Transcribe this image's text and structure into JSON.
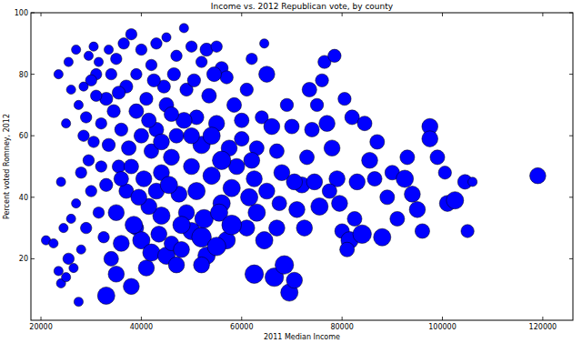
{
  "chart_data": {
    "type": "scatter",
    "title": "Income vs. 2012 Republican vote, by county",
    "x_label": "2011 Median Income",
    "y_label": "Percent voted Romney, 2012",
    "color": "#0000ff",
    "grid": false,
    "xlim": [
      18000,
      126000
    ],
    "ylim": [
      0,
      100
    ],
    "xticks": [
      20000,
      40000,
      60000,
      80000,
      100000,
      120000
    ],
    "yticks": [
      20,
      40,
      60,
      80,
      100
    ],
    "x": [
      21000,
      22500,
      23500,
      24000,
      25000,
      25500,
      26500,
      27500,
      28000,
      24500,
      26000,
      27000,
      25000,
      23500,
      25500,
      27000,
      26000,
      24000,
      28000,
      29000,
      29500,
      28500,
      27500,
      29500,
      30500,
      31000,
      30000,
      31500,
      32500,
      33000,
      35000,
      34000,
      36000,
      38000,
      39000,
      40000,
      41000,
      42000,
      43500,
      45000,
      46000,
      47000,
      48000,
      50000,
      52000,
      53000,
      52500,
      49000,
      44000,
      41500,
      37000,
      35500,
      33500,
      32000,
      33000,
      34000,
      35000,
      36500,
      38000,
      40000,
      42000,
      43000,
      45000,
      47000,
      48500,
      50000,
      52000,
      53000,
      55000,
      56000,
      57000,
      37000,
      39000,
      41000,
      43000,
      45000,
      47000,
      49000,
      51000,
      53500,
      55000,
      57500,
      59000,
      60000,
      58000,
      56000,
      54000,
      50000,
      46000,
      44000,
      42000,
      40000,
      38000,
      36000,
      34500,
      32000,
      30500,
      29000,
      31000,
      30000,
      28500,
      36000,
      39500,
      47500,
      51000,
      55500,
      61000,
      62500,
      63000,
      64000,
      65000,
      66000,
      67000,
      68000,
      66500,
      62500,
      64500,
      67000,
      69500,
      70500,
      68500,
      71000,
      72000,
      73000,
      74000,
      75000,
      76000,
      76500,
      77000,
      78000,
      79000,
      79500,
      80000,
      81500,
      81000,
      82500,
      83000,
      84000,
      86500,
      85500,
      87000,
      88000,
      82000,
      84500,
      80500,
      78500,
      73500,
      70000,
      69000,
      72500,
      75500,
      77500,
      74500,
      90000,
      92500,
      93000,
      94000,
      95000,
      96000,
      97500,
      97500,
      99000,
      101000,
      102500,
      104500,
      105000,
      106000,
      119000,
      100500,
      91000,
      89000,
      63000,
      61500,
      57000,
      55000,
      48000,
      43000,
      38500,
      35000,
      33000,
      37500,
      41500,
      44500,
      46500,
      50500,
      54500,
      58500,
      61000,
      62000,
      64500,
      60000,
      52000,
      48500,
      40500,
      45500,
      39000,
      35500,
      33500,
      31500,
      42500,
      46000,
      44000,
      50000,
      56000,
      54000,
      62000,
      65000,
      67500,
      70500,
      58000,
      52000
    ],
    "values": [
      26,
      25,
      16,
      12,
      14,
      20,
      17,
      6,
      23,
      30,
      33,
      38,
      64,
      80,
      84,
      88,
      75,
      45,
      48,
      30,
      52,
      60,
      70,
      86,
      89,
      80,
      42,
      35,
      27,
      8,
      15,
      20,
      25,
      11,
      30,
      26,
      17,
      22,
      28,
      21,
      25,
      18,
      23,
      29,
      27,
      21,
      33,
      35,
      34,
      37,
      42,
      50,
      57,
      64,
      72,
      80,
      85,
      90,
      93,
      88,
      83,
      90,
      92,
      86,
      95,
      89,
      84,
      88,
      89,
      82,
      79,
      76,
      68,
      72,
      62,
      70,
      60,
      75,
      66,
      73,
      64,
      56,
      50,
      59,
      43,
      38,
      47,
      50,
      53,
      48,
      55,
      60,
      50,
      62,
      68,
      50,
      58,
      66,
      73,
      78,
      76,
      46,
      40,
      41,
      42,
      35,
      30,
      46,
      56,
      66,
      80,
      63,
      55,
      48,
      14,
      15,
      26,
      30,
      9,
      13,
      18,
      36,
      44,
      53,
      62,
      70,
      78,
      84,
      64,
      56,
      46,
      38,
      29,
      26,
      23,
      33,
      45,
      28,
      46,
      52,
      58,
      27,
      66,
      64,
      72,
      86,
      75,
      63,
      70,
      30,
      37,
      42,
      45,
      48,
      46,
      53,
      41,
      36,
      29,
      63,
      59,
      53,
      38,
      39,
      45,
      29,
      45,
      47,
      48,
      33,
      40,
      35,
      40,
      26,
      24,
      31,
      42,
      31,
      35,
      44,
      56,
      65,
      76,
      80,
      78,
      80,
      70,
      75,
      85,
      90,
      65,
      57,
      65,
      46,
      44,
      80,
      74,
      88,
      84,
      78,
      67,
      58,
      60,
      52,
      60,
      52,
      42,
      38,
      45,
      31,
      18
    ],
    "sizes": [
      2,
      2,
      2,
      2,
      2,
      3,
      2,
      2,
      2,
      2,
      2,
      2,
      2,
      2,
      2,
      2,
      2,
      2,
      3,
      3,
      3,
      3,
      2,
      2,
      2,
      3,
      3,
      3,
      3,
      7,
      6,
      5,
      6,
      6,
      5,
      7,
      6,
      7,
      6,
      7,
      5,
      6,
      6,
      7,
      9,
      7,
      8,
      6,
      7,
      6,
      5,
      4,
      4,
      3,
      4,
      3,
      3,
      3,
      3,
      3,
      3,
      3,
      2,
      3,
      2,
      3,
      3,
      4,
      3,
      4,
      4,
      4,
      5,
      4,
      5,
      5,
      5,
      4,
      5,
      5,
      6,
      6,
      6,
      5,
      7,
      7,
      7,
      6,
      6,
      6,
      5,
      5,
      5,
      4,
      4,
      3,
      3,
      3,
      3,
      3,
      2,
      5,
      6,
      6,
      7,
      7,
      6,
      6,
      5,
      4,
      6,
      6,
      5,
      6,
      8,
      8,
      7,
      6,
      7,
      6,
      8,
      6,
      6,
      5,
      5,
      4,
      4,
      4,
      6,
      6,
      6,
      6,
      5,
      7,
      5,
      5,
      6,
      8,
      5,
      6,
      5,
      7,
      5,
      5,
      4,
      4,
      5,
      5,
      4,
      6,
      7,
      5,
      6,
      5,
      7,
      5,
      6,
      6,
      5,
      6,
      6,
      5,
      6,
      7,
      5,
      4,
      2,
      6,
      4,
      5,
      5,
      7,
      7,
      7,
      8,
      7,
      6,
      7,
      6,
      4,
      5,
      5,
      4,
      4,
      4,
      5,
      5,
      4,
      3,
      2,
      5,
      7,
      6,
      6,
      7,
      3,
      4,
      2,
      2,
      4,
      5,
      6,
      6,
      8,
      7,
      6,
      6,
      5,
      6,
      9,
      6
    ]
  }
}
